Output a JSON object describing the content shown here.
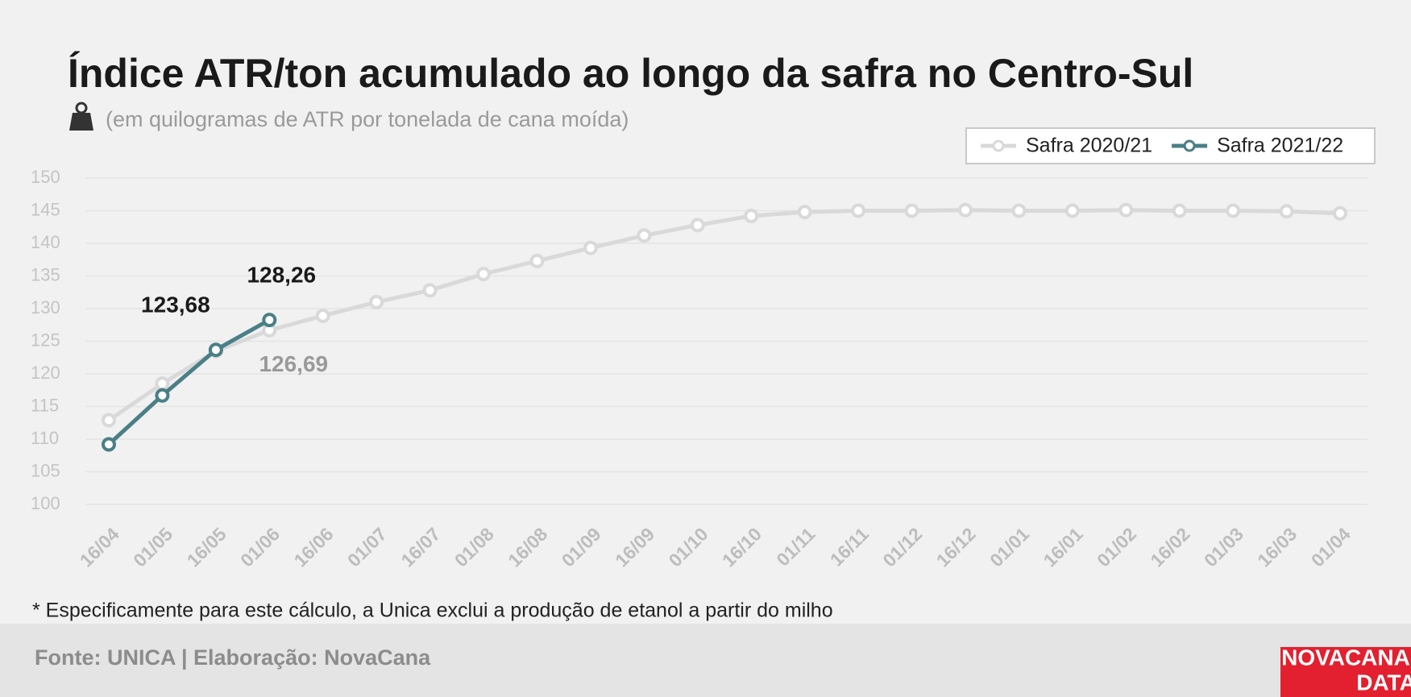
{
  "chart_data": {
    "type": "line",
    "title": "Índice ATR/ton acumulado ao longo da safra no Centro-Sul",
    "subtitle": "(em quilogramas de ATR por tonelada de cana moída)",
    "categories": [
      "16/04",
      "01/05",
      "16/05",
      "01/06",
      "16/06",
      "01/07",
      "16/07",
      "01/08",
      "16/08",
      "01/09",
      "16/09",
      "01/10",
      "16/10",
      "01/11",
      "16/11",
      "01/12",
      "16/12",
      "01/01",
      "16/01",
      "01/02",
      "16/02",
      "01/03",
      "16/03",
      "01/04"
    ],
    "series": [
      {
        "name": "Safra 2020/21",
        "color": "#d9d9d9",
        "values": [
          112.9,
          118.5,
          123.5,
          126.69,
          128.9,
          131.0,
          132.8,
          135.3,
          137.3,
          139.3,
          141.2,
          142.8,
          144.2,
          144.8,
          145.0,
          145.0,
          145.1,
          145.0,
          145.0,
          145.1,
          145.0,
          145.0,
          144.9,
          144.6
        ],
        "value_labels": [
          null,
          null,
          null,
          "126,69",
          null,
          null,
          null,
          null,
          null,
          null,
          null,
          null,
          null,
          null,
          null,
          null,
          null,
          null,
          null,
          null,
          null,
          null,
          null,
          null
        ]
      },
      {
        "name": "Safra 2021/22",
        "color": "#4a7f86",
        "values": [
          109.2,
          116.7,
          123.68,
          128.26,
          null,
          null,
          null,
          null,
          null,
          null,
          null,
          null,
          null,
          null,
          null,
          null,
          null,
          null,
          null,
          null,
          null,
          null,
          null,
          null
        ],
        "value_labels": [
          null,
          null,
          "123,68",
          "128,26",
          null,
          null,
          null,
          null,
          null,
          null,
          null,
          null,
          null,
          null,
          null,
          null,
          null,
          null,
          null,
          null,
          null,
          null,
          null,
          null
        ]
      }
    ],
    "ylim": [
      100,
      150
    ],
    "yticks": [
      100,
      105,
      110,
      115,
      120,
      125,
      130,
      135,
      140,
      145,
      150
    ],
    "grid": true,
    "legend": "top-right",
    "footnote": "* Especificamente para este cálculo, a Unica exclui a produção de etanol a partir do milho",
    "source": "Fonte: UNICA | Elaboração: NovaCana",
    "logo": [
      "NOVACANA",
      "DATA"
    ]
  }
}
